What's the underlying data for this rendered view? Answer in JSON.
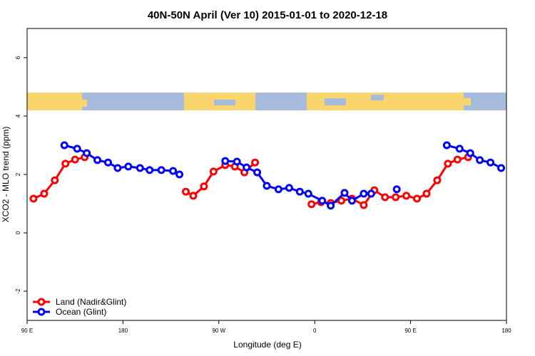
{
  "chart_data": {
    "type": "line",
    "title": "40N-50N April (Ver 10)   2015-01-01 to 2020-12-18",
    "x_label": "Longitude (deg E)",
    "y_label": "XCO2 - MLO trend (ppm)",
    "xlim": [
      90,
      540
    ],
    "ylim": [
      -3,
      7
    ],
    "xticks": [
      {
        "value": 90,
        "label": "90 E"
      },
      180,
      {
        "value": 270,
        "label": "90 W"
      },
      {
        "value": 360,
        "label": "0"
      },
      {
        "value": 450,
        "label": "90 E"
      },
      {
        "value": 540,
        "label": "180"
      }
    ],
    "yticks": [
      -2,
      0,
      2,
      4,
      6
    ],
    "legend": "bottomleft",
    "series": [
      {
        "name": "Land (Nadir&Glint)",
        "color": "#ff0000",
        "x": [
          96,
          106,
          116,
          126,
          135,
          144,
          null,
          239,
          246,
          256,
          265,
          276,
          285,
          294,
          304,
          null,
          357,
          366,
          375,
          385,
          395,
          406,
          416,
          426,
          436,
          446,
          456,
          465,
          475,
          485,
          494,
          504
        ],
        "values": [
          1.17,
          1.34,
          1.8,
          2.37,
          2.51,
          2.59,
          null,
          1.41,
          1.27,
          1.59,
          2.1,
          2.32,
          2.27,
          2.07,
          2.41,
          null,
          0.98,
          1.05,
          1.02,
          1.1,
          1.17,
          0.95,
          1.46,
          1.22,
          1.22,
          1.27,
          1.17,
          1.34,
          1.8,
          2.37,
          2.51,
          2.59
        ]
      },
      {
        "name": "Ocean (Glint)",
        "color": "#0000ff",
        "x": [
          125,
          137,
          146,
          156,
          166,
          175,
          185,
          196,
          205,
          216,
          227,
          233,
          null,
          276,
          287,
          296,
          306,
          315,
          326,
          336,
          346,
          354,
          367,
          375,
          388,
          395,
          406,
          413,
          null,
          437,
          null,
          484,
          496,
          506,
          515,
          525,
          535
        ],
        "values": [
          3.0,
          2.88,
          2.73,
          2.49,
          2.41,
          2.22,
          2.27,
          2.22,
          2.15,
          2.15,
          2.12,
          2.0,
          null,
          2.46,
          2.44,
          2.24,
          2.07,
          1.61,
          1.49,
          1.54,
          1.41,
          1.34,
          1.1,
          0.93,
          1.37,
          1.1,
          1.34,
          1.34,
          null,
          1.49,
          null,
          3.0,
          2.88,
          2.73,
          2.49,
          2.41,
          2.22
        ]
      }
    ]
  }
}
